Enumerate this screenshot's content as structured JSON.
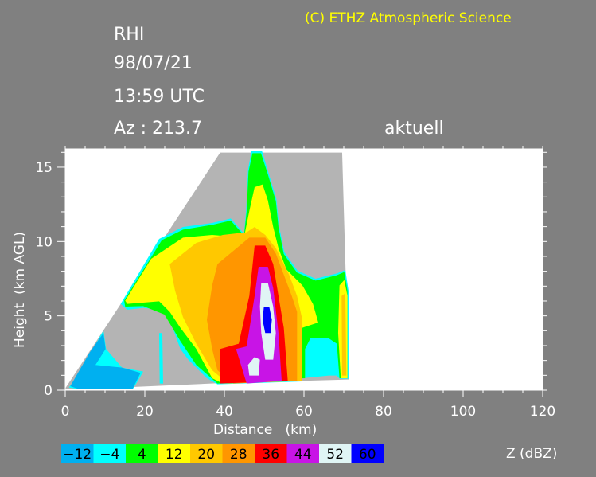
{
  "header": {
    "copyright": "(C) ETHZ Atmospheric Science",
    "scan_type": "RHI",
    "date": "98/07/21",
    "time": "13:59 UTC",
    "azimuth": "Az : 213.7",
    "status": "aktuell"
  },
  "chart_data": {
    "type": "heatmap",
    "title": "",
    "xlabel": "Distance   (km)",
    "ylabel": "Height  (km AGL)",
    "xlim": [
      0,
      120
    ],
    "ylim": [
      0,
      16.2
    ],
    "x_ticks": [
      0,
      20,
      40,
      60,
      80,
      100,
      120
    ],
    "y_ticks": [
      0,
      5,
      10,
      15
    ],
    "x_tick_labels": [
      "0",
      "20",
      "40",
      "60",
      "80",
      "100",
      "120"
    ],
    "y_tick_labels": [
      "0",
      "5",
      "10",
      "15"
    ],
    "scan_coverage_color": "#b4b4b4",
    "background_color": "#ffffff",
    "colorbar": {
      "label": "Z (dBZ)",
      "levels": [
        {
          "value": "−12",
          "color": "#00b0f0"
        },
        {
          "value": "−4",
          "color": "#00ffff"
        },
        {
          "value": "4",
          "color": "#00ff00"
        },
        {
          "value": "12",
          "color": "#ffff00"
        },
        {
          "value": "20",
          "color": "#ffc800"
        },
        {
          "value": "28",
          "color": "#ff9600"
        },
        {
          "value": "36",
          "color": "#ff0000"
        },
        {
          "value": "44",
          "color": "#c814e6"
        },
        {
          "value": "52",
          "color": "#e0f5f5"
        },
        {
          "value": "60",
          "color": "#0000ff"
        }
      ]
    }
  }
}
